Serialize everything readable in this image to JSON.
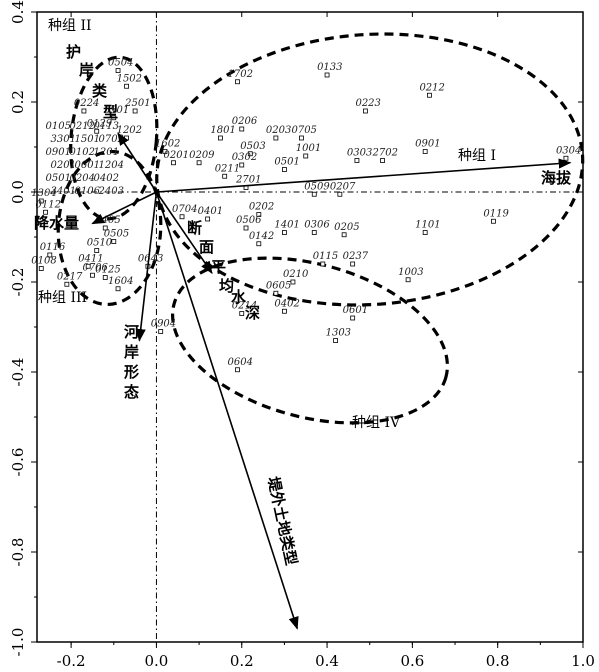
{
  "chart_data": {
    "type": "scatter",
    "title": "",
    "xlabel": "",
    "ylabel": "",
    "xlim": [
      -0.28,
      1.0
    ],
    "ylim": [
      -1.0,
      0.4
    ],
    "xticks": [
      "-0.2",
      "0.0",
      "0.2",
      "0.4",
      "0.6",
      "0.8",
      "1.0"
    ],
    "yticks": [
      "0.4",
      "0.2",
      "0.0",
      "-0.2",
      "-0.4",
      "-0.6",
      "-0.8",
      "-1.0"
    ],
    "reference_lines": {
      "x": 0.0,
      "y": 0.0
    },
    "vectors": [
      {
        "label": "海拔",
        "x": 0.97,
        "y": 0.065
      },
      {
        "label": "护岸类型",
        "x": -0.09,
        "y": 0.13
      },
      {
        "label": "降水量",
        "x": -0.15,
        "y": -0.07
      },
      {
        "label": "断面平均水深",
        "x": 0.13,
        "y": -0.18
      },
      {
        "label": "河岸形态",
        "x": -0.04,
        "y": -0.33
      },
      {
        "label": "堤外土地类型",
        "x": 0.33,
        "y": -0.97
      }
    ],
    "groups": [
      {
        "label": "种组 I",
        "cx": 0.5,
        "cy": 0.05,
        "rx": 0.5,
        "ry": 0.3
      },
      {
        "label": "种组 II",
        "cx": -0.1,
        "cy": 0.12,
        "rx": 0.1,
        "ry": 0.18
      },
      {
        "label": "种组 III",
        "cx": -0.11,
        "cy": -0.08,
        "rx": 0.12,
        "ry": 0.17
      },
      {
        "label": "种组 IV",
        "cx": 0.36,
        "cy": -0.33,
        "rx": 0.33,
        "ry": 0.17
      }
    ],
    "points": [
      {
        "label": "0133",
        "x": 0.4,
        "y": 0.26
      },
      {
        "label": "1702",
        "x": 0.19,
        "y": 0.245
      },
      {
        "label": "0212",
        "x": 0.64,
        "y": 0.215
      },
      {
        "label": "0223",
        "x": 0.49,
        "y": 0.18
      },
      {
        "label": "0504",
        "x": -0.09,
        "y": 0.27
      },
      {
        "label": "1502",
        "x": -0.07,
        "y": 0.235
      },
      {
        "label": "0224",
        "x": -0.17,
        "y": 0.18
      },
      {
        "label": "5501",
        "x": -0.1,
        "y": 0.165
      },
      {
        "label": "2501",
        "x": -0.05,
        "y": 0.18
      },
      {
        "label": "0206",
        "x": 0.2,
        "y": 0.14
      },
      {
        "label": "0203",
        "x": 0.28,
        "y": 0.12
      },
      {
        "label": "0705",
        "x": 0.34,
        "y": 0.12
      },
      {
        "label": "1801",
        "x": 0.15,
        "y": 0.12
      },
      {
        "label": "0129",
        "x": -0.14,
        "y": 0.135
      },
      {
        "label": "1202",
        "x": -0.07,
        "y": 0.12
      },
      {
        "label": "0901",
        "x": 0.63,
        "y": 0.09
      },
      {
        "label": "0304",
        "x": 0.96,
        "y": 0.075
      },
      {
        "label": "1001",
        "x": 0.35,
        "y": 0.08
      },
      {
        "label": "0503",
        "x": 0.22,
        "y": 0.085
      },
      {
        "label": "1602",
        "x": 0.02,
        "y": 0.09
      },
      {
        "label": "0303",
        "x": 0.47,
        "y": 0.07
      },
      {
        "label": "2702",
        "x": 0.53,
        "y": 0.07
      },
      {
        "label": "0201",
        "x": 0.04,
        "y": 0.065
      },
      {
        "label": "0209",
        "x": 0.1,
        "y": 0.065
      },
      {
        "label": "0302",
        "x": 0.2,
        "y": 0.06
      },
      {
        "label": "0501",
        "x": 0.3,
        "y": 0.05
      },
      {
        "label": "0211",
        "x": 0.16,
        "y": 0.035
      },
      {
        "label": "2701",
        "x": 0.21,
        "y": 0.01
      },
      {
        "label": "0509",
        "x": 0.37,
        "y": -0.005
      },
      {
        "label": "0207",
        "x": 0.43,
        "y": -0.005
      },
      {
        "label": "0119",
        "x": 0.79,
        "y": -0.065
      },
      {
        "label": "1101",
        "x": 0.63,
        "y": -0.09
      },
      {
        "label": "0704",
        "x": 0.06,
        "y": -0.055
      },
      {
        "label": "0401",
        "x": 0.12,
        "y": -0.06
      },
      {
        "label": "0202",
        "x": 0.24,
        "y": -0.05
      },
      {
        "label": "0506",
        "x": 0.21,
        "y": -0.08
      },
      {
        "label": "1401",
        "x": 0.3,
        "y": -0.09
      },
      {
        "label": "0306",
        "x": 0.37,
        "y": -0.09
      },
      {
        "label": "0205",
        "x": 0.44,
        "y": -0.095
      },
      {
        "label": "0142",
        "x": 0.24,
        "y": -0.115
      },
      {
        "label": "0115",
        "x": 0.39,
        "y": -0.16
      },
      {
        "label": "0237",
        "x": 0.46,
        "y": -0.16
      },
      {
        "label": "1003",
        "x": 0.59,
        "y": -0.195
      },
      {
        "label": "0210",
        "x": 0.32,
        "y": -0.2
      },
      {
        "label": "0605",
        "x": 0.28,
        "y": -0.225
      },
      {
        "label": "0402",
        "x": 0.3,
        "y": -0.265
      },
      {
        "label": "0601",
        "x": 0.46,
        "y": -0.28
      },
      {
        "label": "0214",
        "x": 0.2,
        "y": -0.27
      },
      {
        "label": "1303",
        "x": 0.42,
        "y": -0.33
      },
      {
        "label": "0904",
        "x": 0.01,
        "y": -0.31
      },
      {
        "label": "0604",
        "x": 0.19,
        "y": -0.395
      },
      {
        "label": "0125",
        "x": -0.12,
        "y": -0.19
      },
      {
        "label": "1604",
        "x": -0.09,
        "y": -0.215
      },
      {
        "label": "1304",
        "x": -0.27,
        "y": -0.02
      },
      {
        "label": "0112",
        "x": -0.26,
        "y": -0.045
      },
      {
        "label": "0116",
        "x": -0.25,
        "y": -0.14
      },
      {
        "label": "0108",
        "x": -0.27,
        "y": -0.17
      },
      {
        "label": "0706",
        "x": -0.15,
        "y": -0.185
      },
      {
        "label": "0217",
        "x": -0.21,
        "y": -0.205
      },
      {
        "label": "0411",
        "x": -0.16,
        "y": -0.165
      },
      {
        "label": "0510",
        "x": -0.14,
        "y": -0.13
      },
      {
        "label": "0405",
        "x": -0.12,
        "y": -0.08
      },
      {
        "label": "0505",
        "x": -0.1,
        "y": -0.11
      },
      {
        "label": "0643",
        "x": -0.02,
        "y": -0.165
      }
    ]
  },
  "labels": {
    "v_elevation": "海拔",
    "v_revet": [
      "护",
      "岸",
      "类",
      "型"
    ],
    "v_precip": "降水量",
    "v_depth": [
      "断",
      "面",
      "平",
      "均",
      "水",
      "深"
    ],
    "v_bank": [
      "河",
      "岸",
      "形",
      "态"
    ],
    "v_land": [
      "堤",
      "外",
      "土",
      "地",
      "类",
      "型"
    ],
    "g1": "种组 I",
    "g2": "种组 II",
    "g3": "种组 III",
    "g4": "种组 IV",
    "dense_cluster": [
      "0105",
      "0212",
      "0113",
      "3301",
      "1501",
      "0702",
      "0901",
      "0102",
      "1201",
      "0201",
      "0601",
      "1204",
      "0501",
      "0204",
      "0402",
      "3401",
      "0106",
      "2403"
    ]
  }
}
